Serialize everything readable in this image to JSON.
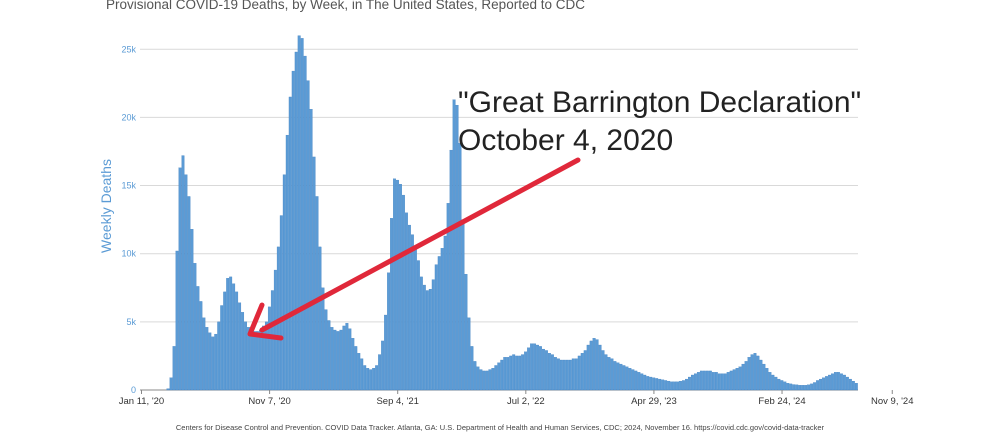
{
  "title": "Provisional COVID-19 Deaths, by Week, in The United States, Reported to CDC",
  "annotation": {
    "line1": "\"Great Barrington Declaration\"",
    "line2": "October 4, 2020",
    "arrow_color": "#e0283a"
  },
  "source": "Centers for Disease Control and Prevention. COVID Data Tracker. Atlanta, GA: U.S. Department of Health and Human Services, CDC; 2024, November 16. https://covid.cdc.gov/covid-data-tracker",
  "colors": {
    "bar": "#5b9bd5",
    "bar_stroke": "#3f7fbf",
    "grid": "#d9d9d9",
    "axis_label": "#5b9bd5"
  },
  "chart_data": {
    "type": "bar",
    "title": "Provisional COVID-19 Deaths, by Week, in The United States, Reported to CDC",
    "ylabel": "Weekly Deaths",
    "xlabel": "",
    "ylim": [
      0,
      27000
    ],
    "y_ticks": [
      "0",
      "5k",
      "10k",
      "15k",
      "20k",
      "25k"
    ],
    "y_tick_values": [
      0,
      5000,
      10000,
      15000,
      20000,
      25000
    ],
    "x_ticks": [
      "Jan 11, '20",
      "Nov 7, '20",
      "Sep 4, '21",
      "Jul 2, '22",
      "Apr 29, '23",
      "Feb 24, '24",
      "Nov 9, '24"
    ],
    "grid": true,
    "x_start": "2020-01-11",
    "interval_days": 7,
    "values": [
      0,
      0,
      0,
      0,
      0,
      0,
      0,
      0,
      0,
      100,
      900,
      3200,
      10200,
      16300,
      17200,
      15800,
      14200,
      11800,
      9300,
      7600,
      6500,
      5300,
      4600,
      4200,
      3900,
      4100,
      5000,
      6200,
      7200,
      8200,
      8300,
      7800,
      7200,
      6400,
      5700,
      5000,
      4600,
      4400,
      4300,
      4300,
      4400,
      4700,
      5000,
      6100,
      7300,
      8800,
      10500,
      12800,
      15800,
      18700,
      21500,
      23400,
      24800,
      26000,
      25800,
      24500,
      22700,
      20600,
      17100,
      14200,
      10500,
      7500,
      5900,
      5100,
      4600,
      4400,
      4300,
      4400,
      4700,
      4900,
      4500,
      3800,
      3200,
      2700,
      2300,
      1800,
      1600,
      1500,
      1600,
      1800,
      2600,
      3600,
      5500,
      8600,
      12600,
      15500,
      15400,
      15100,
      14300,
      13000,
      12100,
      11400,
      10300,
      9500,
      8300,
      7700,
      7300,
      7400,
      8100,
      9200,
      9800,
      10400,
      11300,
      13700,
      17600,
      21300,
      20900,
      18100,
      12500,
      8500,
      5300,
      3200,
      2100,
      1700,
      1500,
      1400,
      1400,
      1500,
      1600,
      1800,
      2000,
      2200,
      2400,
      2400,
      2500,
      2600,
      2500,
      2500,
      2600,
      2800,
      3100,
      3400,
      3400,
      3300,
      3200,
      3000,
      2900,
      2700,
      2600,
      2400,
      2300,
      2200,
      2200,
      2200,
      2200,
      2300,
      2300,
      2500,
      2700,
      2900,
      3300,
      3600,
      3800,
      3700,
      3300,
      2900,
      2600,
      2400,
      2300,
      2100,
      2000,
      1900,
      1800,
      1700,
      1600,
      1500,
      1400,
      1300,
      1200,
      1100,
      1000,
      950,
      900,
      850,
      800,
      750,
      700,
      650,
      600,
      600,
      600,
      650,
      700,
      800,
      950,
      1100,
      1200,
      1300,
      1400,
      1400,
      1400,
      1400,
      1300,
      1300,
      1200,
      1200,
      1200,
      1300,
      1400,
      1500,
      1600,
      1700,
      1900,
      2100,
      2400,
      2600,
      2700,
      2500,
      2200,
      1900,
      1600,
      1300,
      1100,
      950,
      800,
      700,
      600,
      500,
      450,
      400,
      380,
      350,
      350,
      350,
      380,
      450,
      550,
      700,
      800,
      900,
      1000,
      1100,
      1200,
      1300,
      1300,
      1200,
      1100,
      950,
      800,
      650,
      500
    ]
  }
}
